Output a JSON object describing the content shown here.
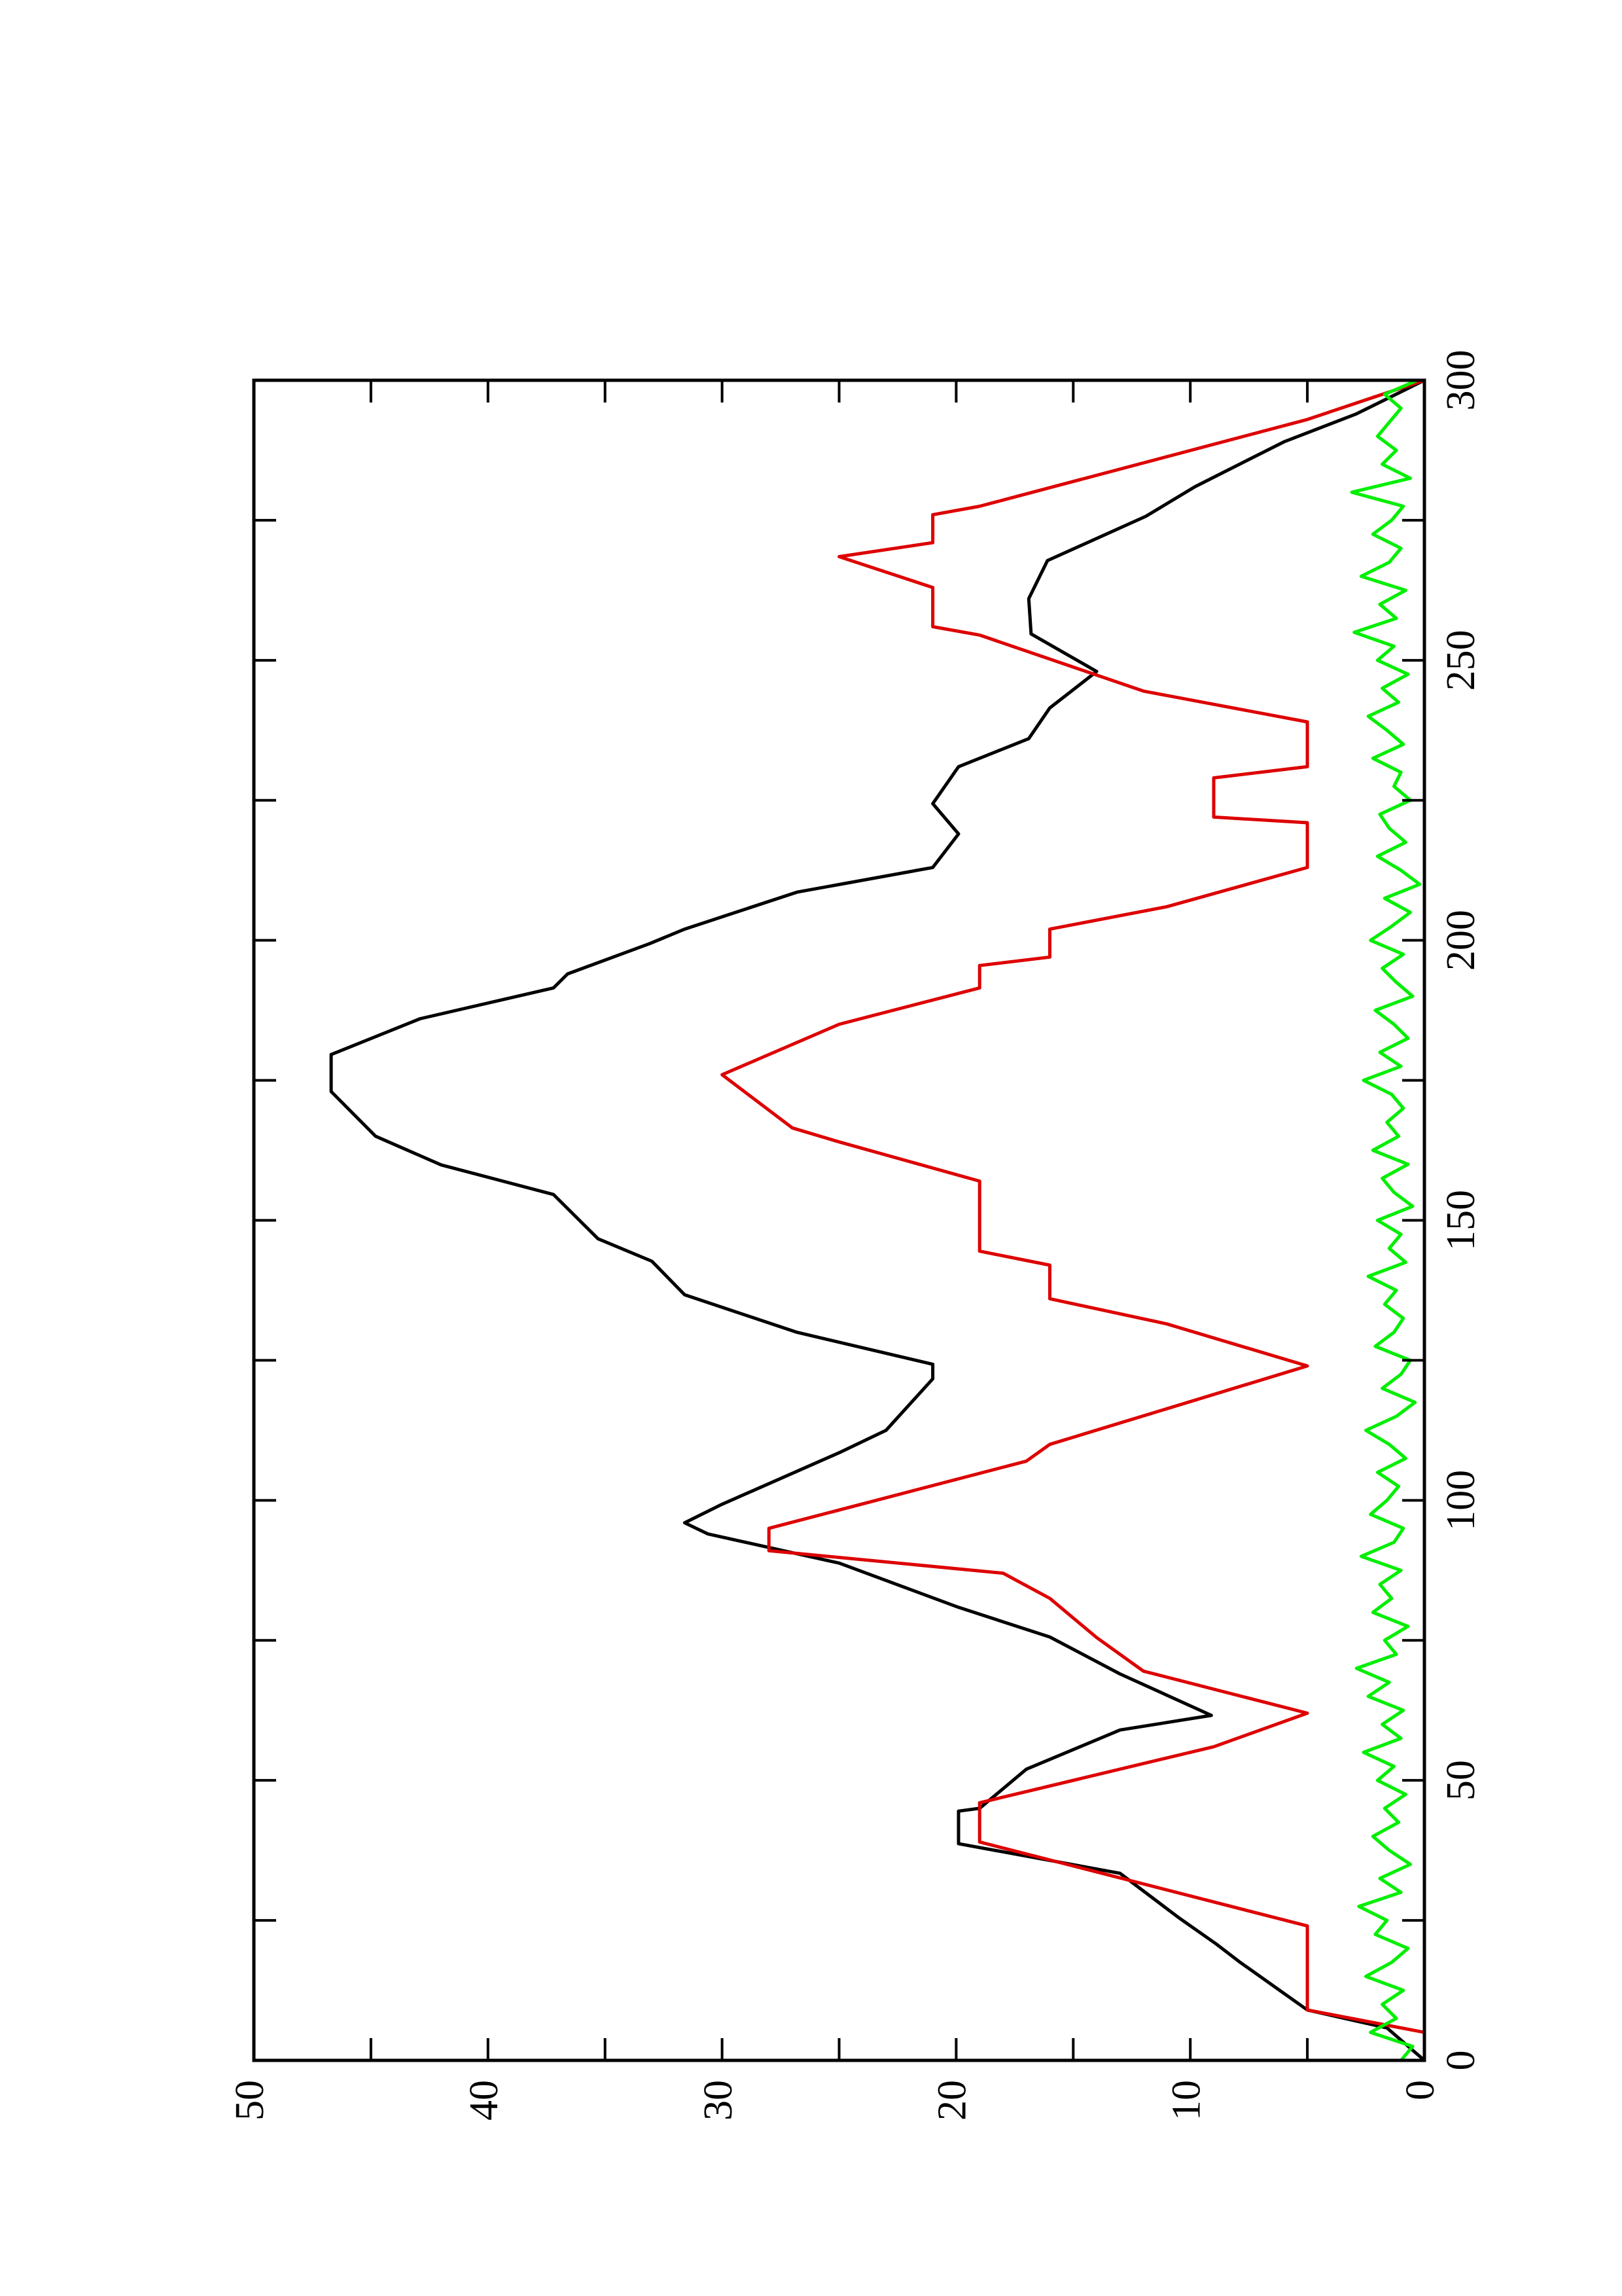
{
  "chart_data": {
    "type": "line",
    "xlim": [
      0,
      300
    ],
    "xticks": [
      0,
      50,
      100,
      150,
      200,
      250,
      300
    ],
    "xminor_ticks": [
      25,
      75,
      125,
      175,
      225,
      275
    ],
    "ylim": [
      0,
      50
    ],
    "yticks": [
      0,
      10,
      20,
      30,
      40,
      50
    ],
    "yminor_ticks": [
      5,
      15,
      25,
      35,
      45
    ],
    "series": [
      {
        "color": "#000000",
        "x": [
          0,
          5.8,
          9,
          17.6,
          20.8,
          25.5,
          33.4,
          38.7,
          44.5,
          45,
          52,
          59,
          61.6,
          69,
          75.6,
          80.9,
          88.8,
          94,
          96,
          99.3,
          108.5,
          112.5,
          121.7,
          124.3,
          130,
          136.7,
          142.7,
          146.7,
          154.6,
          159.9,
          165,
          173,
          179.6,
          186,
          191.5,
          194,
          199.4,
          202,
          208.6,
          213,
          219,
          224.4,
          231,
          236,
          241.5,
          248,
          254.7,
          261,
          267.8,
          275.7,
          281,
          289,
          294,
          300
        ],
        "values": [
          0,
          1.6,
          5,
          7.9,
          8.9,
          10.5,
          13,
          19.9,
          19.9,
          19,
          17,
          13,
          9.1,
          13,
          16,
          19.9,
          25,
          30.6,
          31.6,
          30,
          25,
          23,
          21,
          21,
          26.8,
          31.6,
          33,
          35.3,
          37.2,
          42,
          44.8,
          46.7,
          46.7,
          42.9,
          37.2,
          36.6,
          33.1,
          31.6,
          26.8,
          21,
          19.9,
          21,
          19.9,
          16.9,
          16,
          14,
          16.8,
          16.9,
          16.1,
          11.9,
          9.8,
          6,
          2.9,
          0
        ]
      },
      {
        "color": "#dd0000",
        "x": [
          5,
          9,
          24,
          39,
          46,
          48,
          56,
          62,
          69.5,
          75.5,
          82.5,
          87,
          91,
          95,
          107,
          110,
          124,
          131.5,
          136,
          142,
          144.5,
          157,
          164,
          166.5,
          176,
          185,
          191.5,
          195.5,
          197,
          202,
          206,
          213,
          221,
          222,
          229,
          231,
          239,
          244.5,
          254.5,
          256,
          263,
          268.5,
          271,
          276,
          277.5,
          293,
          300
        ],
        "values": [
          0,
          5,
          5,
          19,
          19,
          17,
          9,
          5,
          12,
          14,
          16,
          18,
          28,
          28,
          17,
          16,
          5,
          11,
          16,
          16,
          19,
          19,
          25,
          27,
          30,
          25,
          19,
          19,
          16,
          16,
          11,
          5,
          5,
          9,
          9,
          5,
          5,
          12,
          19,
          21,
          21,
          25,
          21,
          21,
          19,
          5,
          0
        ]
      },
      {
        "color": "#00ee00",
        "x": [
          0,
          2.5,
          5,
          7.5,
          10,
          12.5,
          15,
          17.5,
          20,
          22.5,
          25,
          27.5,
          30,
          32.5,
          35,
          37.5,
          40,
          42.5,
          45,
          47.5,
          50,
          52.5,
          55,
          57.5,
          60,
          62.5,
          65,
          67.5,
          70,
          72.5,
          75,
          77.5,
          80,
          82.5,
          85,
          87.5,
          90,
          92.5,
          95,
          97.5,
          100,
          102.5,
          105,
          107.5,
          110,
          112.5,
          115,
          117.5,
          120,
          122.5,
          125,
          127.5,
          130,
          132.5,
          135,
          137.5,
          140,
          142.5,
          145,
          147.5,
          150,
          152.5,
          155,
          157.5,
          160,
          162.5,
          165,
          167.5,
          170,
          172.5,
          175,
          177.5,
          180,
          182.5,
          185,
          187.5,
          190,
          192.5,
          195,
          197.5,
          200,
          202.5,
          205,
          207.5,
          210,
          212.5,
          215,
          217.5,
          220,
          222.5,
          225,
          227.5,
          230,
          232.5,
          235,
          237.5,
          240,
          242.5,
          245,
          247.5,
          250,
          252.5,
          255,
          257.5,
          260,
          262.5,
          265,
          267.5,
          270,
          272.5,
          275,
          277.5,
          280,
          282.5,
          285,
          287.5,
          290,
          292.5,
          295,
          297.5,
          300
        ],
        "values": [
          1.0,
          0.5,
          2.3,
          1.2,
          1.8,
          0.9,
          2.5,
          1.4,
          0.7,
          2.1,
          1.6,
          2.8,
          1.0,
          1.9,
          0.6,
          1.5,
          2.2,
          1.1,
          1.7,
          0.8,
          2.0,
          1.3,
          2.6,
          1.0,
          1.8,
          0.9,
          2.4,
          1.5,
          2.9,
          1.2,
          1.7,
          0.7,
          2.2,
          1.4,
          1.9,
          1.0,
          2.7,
          1.3,
          0.9,
          2.3,
          1.6,
          1.1,
          2.0,
          0.8,
          1.5,
          2.5,
          1.2,
          0.4,
          1.8,
          1.0,
          0.6,
          2.1,
          1.3,
          0.9,
          1.7,
          1.2,
          2.4,
          0.8,
          1.5,
          1.0,
          2.0,
          0.5,
          1.3,
          1.8,
          0.7,
          2.2,
          1.1,
          1.6,
          0.9,
          1.4,
          2.6,
          1.0,
          1.9,
          0.7,
          1.3,
          2.1,
          0.5,
          1.2,
          1.8,
          0.9,
          2.3,
          1.4,
          0.6,
          1.7,
          0.2,
          1.0,
          2.0,
          0.8,
          1.5,
          1.9,
          0.6,
          1.3,
          1.0,
          2.2,
          0.9,
          1.6,
          2.4,
          1.1,
          1.8,
          0.7,
          2.0,
          1.3,
          3.0,
          1.2,
          1.9,
          0.8,
          2.7,
          1.5,
          1.0,
          2.2,
          1.4,
          0.9,
          3.1,
          0.6,
          1.8,
          1.2,
          2.0,
          1.5,
          1.0,
          1.7,
          0.3
        ]
      }
    ]
  }
}
